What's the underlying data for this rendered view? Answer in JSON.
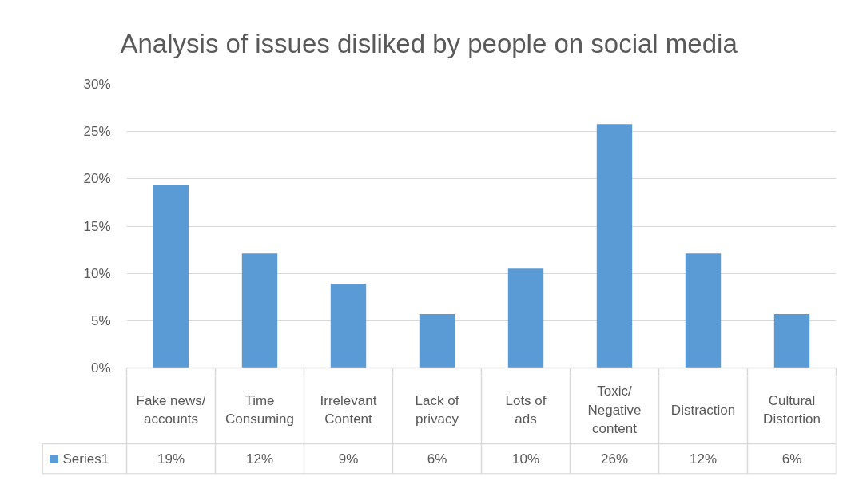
{
  "chart_data": {
    "type": "bar",
    "title": "Analysis of issues disliked by people on social media",
    "categories": [
      "Fake news/ accounts",
      "Time Consuming",
      "Irrelevant Content",
      "Lack of privacy",
      "Lots of ads",
      "Toxic/ Negative content",
      "Distraction",
      "Cultural Distortion"
    ],
    "series": [
      {
        "name": "Series1",
        "color": "#5b9bd5",
        "values": [
          19.3,
          12.1,
          8.9,
          5.7,
          10.5,
          25.8,
          12.1,
          5.7
        ],
        "value_labels": [
          "19%",
          "12%",
          "9%",
          "6%",
          "10%",
          "26%",
          "12%",
          "6%"
        ]
      }
    ],
    "ylim": [
      0,
      30
    ],
    "yticks": [
      {
        "value": 0,
        "label": "0%"
      },
      {
        "value": 5,
        "label": "5%"
      },
      {
        "value": 10,
        "label": "10%"
      },
      {
        "value": 15,
        "label": "15%"
      },
      {
        "value": 20,
        "label": "20%"
      },
      {
        "value": 25,
        "label": "25%"
      },
      {
        "value": 30,
        "label": "30%"
      }
    ],
    "grid": "y",
    "legend": "bottom left"
  }
}
